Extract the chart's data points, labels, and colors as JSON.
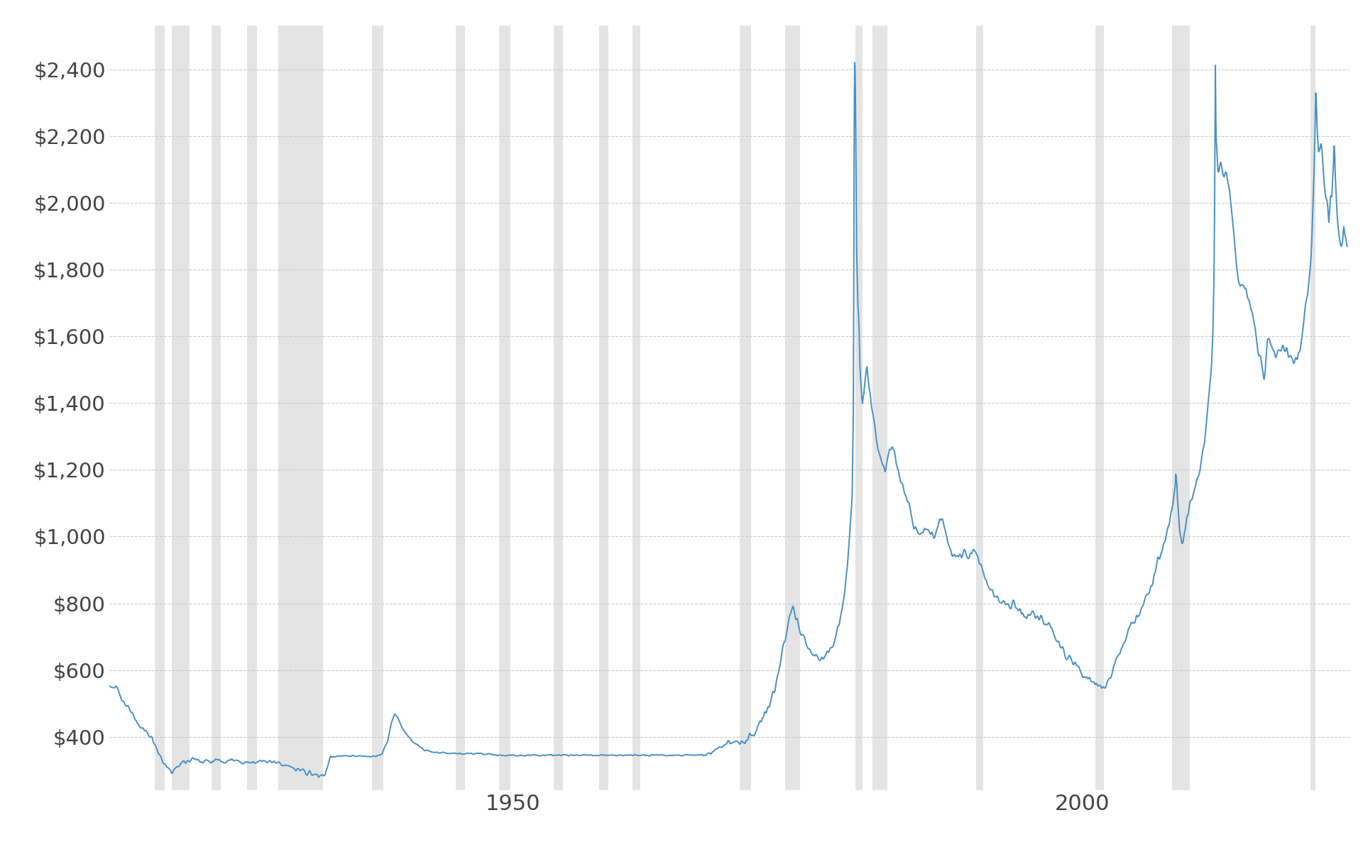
{
  "background_color": "#ffffff",
  "plot_bg_color": "#ffffff",
  "line_color": "#4a90c4",
  "line_width": 1.4,
  "shading_color": "#d3d3d3",
  "shading_alpha": 0.6,
  "grid_color": "#cccccc",
  "grid_linestyle": "--",
  "yticks": [
    400,
    600,
    800,
    1000,
    1200,
    1400,
    1600,
    1800,
    2000,
    2200,
    2400
  ],
  "xticks": [
    1950,
    2000
  ],
  "ylim": [
    240,
    2530
  ],
  "xlim_start": 1914.5,
  "xlim_end": 2023.5,
  "recession_bands": [
    [
      1918.5,
      1919.4
    ],
    [
      1920.0,
      1921.6
    ],
    [
      1923.5,
      1924.3
    ],
    [
      1926.6,
      1927.5
    ],
    [
      1929.4,
      1933.3
    ],
    [
      1937.6,
      1938.6
    ],
    [
      1945.0,
      1945.8
    ],
    [
      1948.8,
      1949.8
    ],
    [
      1953.6,
      1954.4
    ],
    [
      1957.6,
      1958.4
    ],
    [
      1960.5,
      1961.2
    ],
    [
      1969.9,
      1970.9
    ],
    [
      1973.9,
      1975.2
    ],
    [
      1980.1,
      1980.7
    ],
    [
      1981.6,
      1982.9
    ],
    [
      1990.7,
      1991.3
    ],
    [
      2001.2,
      2001.9
    ],
    [
      2007.9,
      2009.5
    ],
    [
      2020.1,
      2020.5
    ]
  ],
  "anchors": [
    [
      1914.5,
      555
    ],
    [
      1915.3,
      540
    ],
    [
      1915.8,
      505
    ],
    [
      1916.2,
      485
    ],
    [
      1916.8,
      450
    ],
    [
      1917.3,
      430
    ],
    [
      1917.8,
      415
    ],
    [
      1918.0,
      405
    ],
    [
      1918.3,
      395
    ],
    [
      1919.0,
      340
    ],
    [
      1919.5,
      310
    ],
    [
      1920.0,
      295
    ],
    [
      1920.5,
      310
    ],
    [
      1921.0,
      325
    ],
    [
      1921.5,
      330
    ],
    [
      1922.0,
      335
    ],
    [
      1922.5,
      328
    ],
    [
      1923.0,
      330
    ],
    [
      1923.5,
      325
    ],
    [
      1924.0,
      330
    ],
    [
      1924.5,
      328
    ],
    [
      1925.0,
      332
    ],
    [
      1925.5,
      328
    ],
    [
      1926.0,
      326
    ],
    [
      1926.5,
      323
    ],
    [
      1927.0,
      325
    ],
    [
      1927.5,
      327
    ],
    [
      1928.0,
      330
    ],
    [
      1928.5,
      327
    ],
    [
      1929.0,
      326
    ],
    [
      1929.5,
      322
    ],
    [
      1930.0,
      315
    ],
    [
      1930.5,
      308
    ],
    [
      1931.0,
      302
    ],
    [
      1931.5,
      297
    ],
    [
      1932.0,
      292
    ],
    [
      1932.5,
      287
    ],
    [
      1933.0,
      282
    ],
    [
      1933.5,
      290
    ],
    [
      1934.0,
      340
    ],
    [
      1934.5,
      342
    ],
    [
      1935.0,
      342
    ],
    [
      1936.0,
      342
    ],
    [
      1937.0,
      342
    ],
    [
      1938.0,
      342
    ],
    [
      1938.5,
      350
    ],
    [
      1939.0,
      388
    ],
    [
      1939.3,
      440
    ],
    [
      1939.6,
      470
    ],
    [
      1939.9,
      455
    ],
    [
      1940.2,
      430
    ],
    [
      1940.8,
      400
    ],
    [
      1941.2,
      385
    ],
    [
      1941.8,
      370
    ],
    [
      1942.5,
      360
    ],
    [
      1943.0,
      355
    ],
    [
      1944.0,
      352
    ],
    [
      1945.0,
      350
    ],
    [
      1946.0,
      350
    ],
    [
      1947.0,
      350
    ],
    [
      1948.0,
      348
    ],
    [
      1949.0,
      345
    ],
    [
      1950.0,
      345
    ],
    [
      1951.0,
      345
    ],
    [
      1952.0,
      345
    ],
    [
      1953.0,
      345
    ],
    [
      1954.0,
      345
    ],
    [
      1955.0,
      345
    ],
    [
      1956.0,
      345
    ],
    [
      1957.0,
      345
    ],
    [
      1958.0,
      345
    ],
    [
      1959.0,
      345
    ],
    [
      1960.0,
      345
    ],
    [
      1961.0,
      345
    ],
    [
      1962.0,
      345
    ],
    [
      1963.0,
      345
    ],
    [
      1964.0,
      345
    ],
    [
      1965.0,
      345
    ],
    [
      1966.0,
      345
    ],
    [
      1967.0,
      345
    ],
    [
      1967.5,
      352
    ],
    [
      1968.0,
      362
    ],
    [
      1968.5,
      372
    ],
    [
      1969.0,
      385
    ],
    [
      1969.5,
      388
    ],
    [
      1970.0,
      382
    ],
    [
      1970.5,
      390
    ],
    [
      1971.0,
      405
    ],
    [
      1971.5,
      430
    ],
    [
      1972.0,
      460
    ],
    [
      1972.5,
      490
    ],
    [
      1973.0,
      540
    ],
    [
      1973.3,
      590
    ],
    [
      1973.6,
      650
    ],
    [
      1974.0,
      720
    ],
    [
      1974.3,
      760
    ],
    [
      1974.6,
      780
    ],
    [
      1974.9,
      760
    ],
    [
      1975.2,
      720
    ],
    [
      1975.5,
      700
    ],
    [
      1975.8,
      680
    ],
    [
      1976.1,
      660
    ],
    [
      1976.4,
      650
    ],
    [
      1976.7,
      645
    ],
    [
      1977.0,
      640
    ],
    [
      1977.3,
      645
    ],
    [
      1977.6,
      655
    ],
    [
      1977.9,
      665
    ],
    [
      1978.2,
      690
    ],
    [
      1978.5,
      720
    ],
    [
      1978.8,
      760
    ],
    [
      1979.0,
      800
    ],
    [
      1979.2,
      850
    ],
    [
      1979.4,
      920
    ],
    [
      1979.6,
      1010
    ],
    [
      1979.8,
      1120
    ],
    [
      1979.92,
      1400
    ],
    [
      1980.0,
      2430
    ],
    [
      1980.07,
      2400
    ],
    [
      1980.1,
      2300
    ],
    [
      1980.15,
      2050
    ],
    [
      1980.2,
      1850
    ],
    [
      1980.3,
      1700
    ],
    [
      1980.4,
      1640
    ],
    [
      1980.5,
      1500
    ],
    [
      1980.6,
      1450
    ],
    [
      1980.7,
      1400
    ],
    [
      1980.8,
      1420
    ],
    [
      1980.9,
      1460
    ],
    [
      1981.0,
      1480
    ],
    [
      1981.1,
      1500
    ],
    [
      1981.2,
      1470
    ],
    [
      1981.3,
      1440
    ],
    [
      1981.4,
      1420
    ],
    [
      1981.5,
      1390
    ],
    [
      1981.7,
      1360
    ],
    [
      1981.9,
      1310
    ],
    [
      1982.1,
      1260
    ],
    [
      1982.3,
      1230
    ],
    [
      1982.5,
      1210
    ],
    [
      1982.7,
      1200
    ],
    [
      1982.9,
      1220
    ],
    [
      1983.1,
      1250
    ],
    [
      1983.3,
      1270
    ],
    [
      1983.5,
      1250
    ],
    [
      1983.7,
      1220
    ],
    [
      1983.9,
      1190
    ],
    [
      1984.1,
      1160
    ],
    [
      1984.3,
      1140
    ],
    [
      1984.5,
      1120
    ],
    [
      1984.7,
      1100
    ],
    [
      1984.9,
      1080
    ],
    [
      1985.1,
      1050
    ],
    [
      1985.3,
      1030
    ],
    [
      1985.5,
      1020
    ],
    [
      1985.7,
      1010
    ],
    [
      1985.9,
      1005
    ],
    [
      1986.1,
      1010
    ],
    [
      1986.3,
      1015
    ],
    [
      1986.5,
      1020
    ],
    [
      1986.7,
      1010
    ],
    [
      1986.9,
      1005
    ],
    [
      1987.1,
      1010
    ],
    [
      1987.3,
      1030
    ],
    [
      1987.5,
      1050
    ],
    [
      1987.7,
      1040
    ],
    [
      1987.9,
      1020
    ],
    [
      1988.1,
      1000
    ],
    [
      1988.3,
      980
    ],
    [
      1988.5,
      960
    ],
    [
      1988.7,
      950
    ],
    [
      1988.9,
      940
    ],
    [
      1989.1,
      940
    ],
    [
      1989.3,
      935
    ],
    [
      1989.5,
      940
    ],
    [
      1989.7,
      945
    ],
    [
      1989.9,
      940
    ],
    [
      1990.1,
      945
    ],
    [
      1990.3,
      950
    ],
    [
      1990.5,
      955
    ],
    [
      1990.7,
      945
    ],
    [
      1990.9,
      930
    ],
    [
      1991.1,
      910
    ],
    [
      1991.3,
      890
    ],
    [
      1991.5,
      870
    ],
    [
      1991.7,
      850
    ],
    [
      1991.9,
      840
    ],
    [
      1992.1,
      830
    ],
    [
      1992.3,
      820
    ],
    [
      1992.5,
      815
    ],
    [
      1992.7,
      810
    ],
    [
      1992.9,
      805
    ],
    [
      1993.1,
      800
    ],
    [
      1993.3,
      798
    ],
    [
      1993.5,
      800
    ],
    [
      1993.7,
      798
    ],
    [
      1993.9,
      795
    ],
    [
      1994.1,
      790
    ],
    [
      1994.3,
      785
    ],
    [
      1994.5,
      782
    ],
    [
      1994.7,
      778
    ],
    [
      1994.9,
      775
    ],
    [
      1995.1,
      770
    ],
    [
      1995.3,
      768
    ],
    [
      1995.5,
      765
    ],
    [
      1995.7,
      762
    ],
    [
      1995.9,
      758
    ],
    [
      1996.1,
      755
    ],
    [
      1996.3,
      750
    ],
    [
      1996.5,
      745
    ],
    [
      1996.7,
      740
    ],
    [
      1996.9,
      736
    ],
    [
      1997.1,
      730
    ],
    [
      1997.3,
      720
    ],
    [
      1997.5,
      710
    ],
    [
      1997.7,
      695
    ],
    [
      1997.9,
      682
    ],
    [
      1998.1,
      670
    ],
    [
      1998.3,
      660
    ],
    [
      1998.5,
      650
    ],
    [
      1998.7,
      645
    ],
    [
      1998.9,
      638
    ],
    [
      1999.1,
      630
    ],
    [
      1999.3,
      620
    ],
    [
      1999.5,
      612
    ],
    [
      1999.7,
      605
    ],
    [
      1999.9,
      598
    ],
    [
      2000.1,
      590
    ],
    [
      2000.3,
      582
    ],
    [
      2000.5,
      575
    ],
    [
      2000.7,
      570
    ],
    [
      2000.9,
      565
    ],
    [
      2001.1,
      560
    ],
    [
      2001.3,
      555
    ],
    [
      2001.5,
      550
    ],
    [
      2001.7,
      548
    ],
    [
      2001.9,
      550
    ],
    [
      2002.1,
      558
    ],
    [
      2002.3,
      570
    ],
    [
      2002.5,
      585
    ],
    [
      2002.7,
      600
    ],
    [
      2002.9,
      618
    ],
    [
      2003.1,
      635
    ],
    [
      2003.3,
      652
    ],
    [
      2003.5,
      668
    ],
    [
      2003.7,
      685
    ],
    [
      2003.9,
      700
    ],
    [
      2004.1,
      715
    ],
    [
      2004.3,
      728
    ],
    [
      2004.5,
      740
    ],
    [
      2004.7,
      752
    ],
    [
      2004.9,
      765
    ],
    [
      2005.1,
      778
    ],
    [
      2005.3,
      792
    ],
    [
      2005.5,
      806
    ],
    [
      2005.7,
      820
    ],
    [
      2005.9,
      836
    ],
    [
      2006.1,
      855
    ],
    [
      2006.3,
      878
    ],
    [
      2006.5,
      900
    ],
    [
      2006.7,
      920
    ],
    [
      2006.9,
      942
    ],
    [
      2007.1,
      965
    ],
    [
      2007.3,
      990
    ],
    [
      2007.5,
      1015
    ],
    [
      2007.7,
      1045
    ],
    [
      2007.9,
      1075
    ],
    [
      2008.0,
      1100
    ],
    [
      2008.1,
      1130
    ],
    [
      2008.2,
      1160
    ],
    [
      2008.25,
      1200
    ],
    [
      2008.3,
      1180
    ],
    [
      2008.35,
      1150
    ],
    [
      2008.4,
      1100
    ],
    [
      2008.5,
      1050
    ],
    [
      2008.6,
      1010
    ],
    [
      2008.7,
      990
    ],
    [
      2008.8,
      970
    ],
    [
      2008.9,
      980
    ],
    [
      2009.0,
      1010
    ],
    [
      2009.1,
      1030
    ],
    [
      2009.2,
      1050
    ],
    [
      2009.3,
      1060
    ],
    [
      2009.4,
      1080
    ],
    [
      2009.5,
      1100
    ],
    [
      2009.6,
      1110
    ],
    [
      2009.7,
      1120
    ],
    [
      2009.8,
      1130
    ],
    [
      2009.9,
      1145
    ],
    [
      2010.0,
      1160
    ],
    [
      2010.1,
      1170
    ],
    [
      2010.2,
      1180
    ],
    [
      2010.3,
      1195
    ],
    [
      2010.4,
      1210
    ],
    [
      2010.5,
      1230
    ],
    [
      2010.6,
      1255
    ],
    [
      2010.7,
      1280
    ],
    [
      2010.8,
      1310
    ],
    [
      2010.9,
      1340
    ],
    [
      2011.0,
      1370
    ],
    [
      2011.1,
      1400
    ],
    [
      2011.2,
      1440
    ],
    [
      2011.3,
      1490
    ],
    [
      2011.4,
      1540
    ],
    [
      2011.5,
      1620
    ],
    [
      2011.6,
      1780
    ],
    [
      2011.65,
      1950
    ],
    [
      2011.68,
      2100
    ],
    [
      2011.7,
      2280
    ],
    [
      2011.72,
      2430
    ],
    [
      2011.74,
      2350
    ],
    [
      2011.76,
      2260
    ],
    [
      2011.78,
      2200
    ],
    [
      2011.8,
      2180
    ],
    [
      2011.85,
      2150
    ],
    [
      2011.9,
      2130
    ],
    [
      2011.95,
      2100
    ],
    [
      2012.0,
      2090
    ],
    [
      2012.1,
      2100
    ],
    [
      2012.2,
      2110
    ],
    [
      2012.3,
      2100
    ],
    [
      2012.4,
      2080
    ],
    [
      2012.5,
      2070
    ],
    [
      2012.6,
      2080
    ],
    [
      2012.7,
      2075
    ],
    [
      2012.8,
      2060
    ],
    [
      2012.9,
      2040
    ],
    [
      2013.0,
      2020
    ],
    [
      2013.1,
      1990
    ],
    [
      2013.2,
      1960
    ],
    [
      2013.3,
      1920
    ],
    [
      2013.4,
      1880
    ],
    [
      2013.5,
      1840
    ],
    [
      2013.6,
      1800
    ],
    [
      2013.7,
      1780
    ],
    [
      2013.8,
      1760
    ],
    [
      2013.9,
      1748
    ],
    [
      2014.0,
      1760
    ],
    [
      2014.2,
      1755
    ],
    [
      2014.4,
      1740
    ],
    [
      2014.6,
      1720
    ],
    [
      2014.8,
      1700
    ],
    [
      2015.0,
      1660
    ],
    [
      2015.2,
      1620
    ],
    [
      2015.4,
      1580
    ],
    [
      2015.6,
      1540
    ],
    [
      2015.8,
      1510
    ],
    [
      2016.0,
      1490
    ],
    [
      2016.1,
      1510
    ],
    [
      2016.2,
      1540
    ],
    [
      2016.3,
      1570
    ],
    [
      2016.4,
      1590
    ],
    [
      2016.5,
      1600
    ],
    [
      2016.6,
      1580
    ],
    [
      2016.7,
      1565
    ],
    [
      2016.8,
      1555
    ],
    [
      2016.9,
      1545
    ],
    [
      2017.0,
      1540
    ],
    [
      2017.1,
      1545
    ],
    [
      2017.2,
      1550
    ],
    [
      2017.3,
      1555
    ],
    [
      2017.4,
      1560
    ],
    [
      2017.5,
      1560
    ],
    [
      2017.6,
      1565
    ],
    [
      2017.7,
      1568
    ],
    [
      2017.8,
      1562
    ],
    [
      2017.9,
      1555
    ],
    [
      2018.0,
      1558
    ],
    [
      2018.1,
      1555
    ],
    [
      2018.2,
      1552
    ],
    [
      2018.3,
      1548
    ],
    [
      2018.4,
      1540
    ],
    [
      2018.5,
      1535
    ],
    [
      2018.6,
      1530
    ],
    [
      2018.7,
      1528
    ],
    [
      2018.8,
      1530
    ],
    [
      2018.9,
      1535
    ],
    [
      2019.0,
      1550
    ],
    [
      2019.1,
      1560
    ],
    [
      2019.2,
      1575
    ],
    [
      2019.3,
      1595
    ],
    [
      2019.4,
      1620
    ],
    [
      2019.5,
      1650
    ],
    [
      2019.6,
      1680
    ],
    [
      2019.7,
      1700
    ],
    [
      2019.8,
      1720
    ],
    [
      2019.9,
      1745
    ],
    [
      2020.0,
      1780
    ],
    [
      2020.1,
      1830
    ],
    [
      2020.2,
      1900
    ],
    [
      2020.3,
      2000
    ],
    [
      2020.4,
      2100
    ],
    [
      2020.5,
      2250
    ],
    [
      2020.55,
      2340
    ],
    [
      2020.6,
      2300
    ],
    [
      2020.65,
      2240
    ],
    [
      2020.7,
      2200
    ],
    [
      2020.8,
      2150
    ],
    [
      2020.9,
      2160
    ],
    [
      2021.0,
      2180
    ],
    [
      2021.1,
      2150
    ],
    [
      2021.2,
      2100
    ],
    [
      2021.3,
      2050
    ],
    [
      2021.4,
      2020
    ],
    [
      2021.5,
      2000
    ],
    [
      2021.6,
      1980
    ],
    [
      2021.65,
      1960
    ],
    [
      2021.7,
      1940
    ],
    [
      2021.75,
      1970
    ],
    [
      2021.8,
      2000
    ],
    [
      2021.85,
      2020
    ],
    [
      2021.9,
      2020
    ],
    [
      2021.95,
      2010
    ],
    [
      2022.0,
      2050
    ],
    [
      2022.1,
      2120
    ],
    [
      2022.15,
      2190
    ],
    [
      2022.2,
      2170
    ],
    [
      2022.25,
      2100
    ],
    [
      2022.3,
      2050
    ],
    [
      2022.35,
      2020
    ],
    [
      2022.4,
      1980
    ],
    [
      2022.45,
      1960
    ],
    [
      2022.5,
      1940
    ],
    [
      2022.6,
      1900
    ],
    [
      2022.7,
      1880
    ],
    [
      2022.8,
      1870
    ],
    [
      2022.9,
      1880
    ],
    [
      2023.0,
      1930
    ],
    [
      2023.3,
      1870
    ]
  ]
}
